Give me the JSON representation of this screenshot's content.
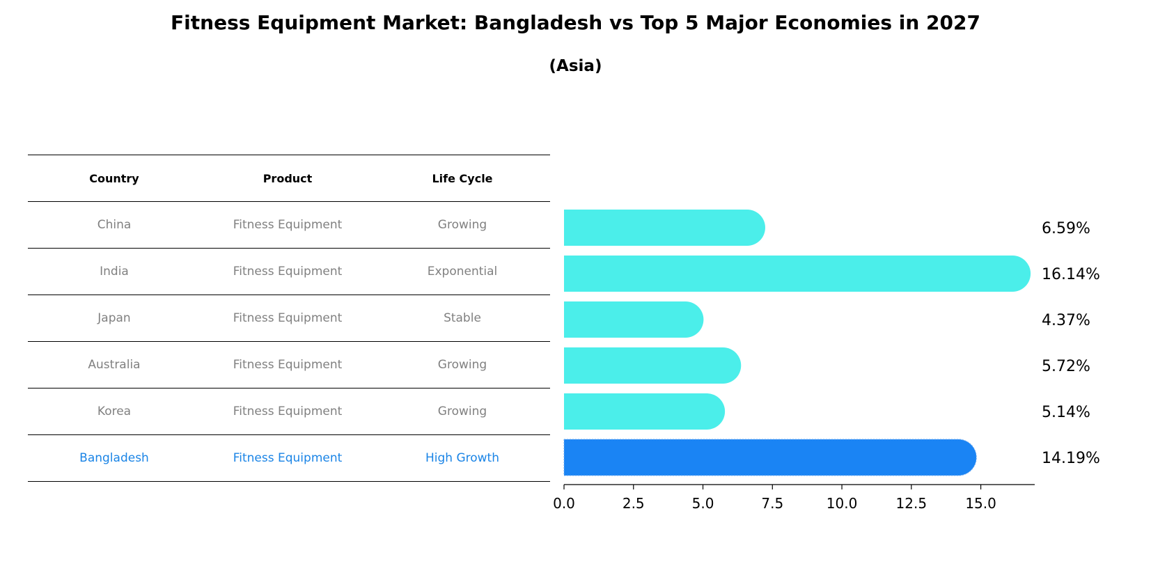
{
  "title": "Fitness Equipment Market: Bangladesh vs Top 5 Major Economies in 2027",
  "subtitle": "(Asia)",
  "table": {
    "headers": [
      "Country",
      "Product",
      "Life Cycle"
    ],
    "rows": [
      [
        "China",
        "Fitness Equipment",
        "Growing"
      ],
      [
        "India",
        "Fitness Equipment",
        "Exponential"
      ],
      [
        "Japan",
        "Fitness Equipment",
        "Stable"
      ],
      [
        "Australia",
        "Fitness Equipment",
        "Growing"
      ],
      [
        "Korea",
        "Fitness Equipment",
        "Growing"
      ],
      [
        "Bangladesh",
        "Fitness Equipment",
        "High Growth"
      ]
    ]
  },
  "chart_data": {
    "type": "bar",
    "orientation": "horizontal",
    "categories": [
      "China",
      "India",
      "Japan",
      "Australia",
      "Korea",
      "Bangladesh"
    ],
    "values": [
      6.59,
      16.14,
      4.37,
      5.72,
      5.14,
      14.19
    ],
    "value_labels": [
      "6.59%",
      "16.14%",
      "4.37%",
      "5.72%",
      "5.14%",
      "14.19%"
    ],
    "xlim": [
      0,
      16.94
    ],
    "xticks": [
      0,
      2.5,
      5,
      7.5,
      10,
      12.5,
      15
    ],
    "xtick_labels": [
      "0.0",
      "2.5",
      "5.0",
      "7.5",
      "10.0",
      "12.5",
      "15.0"
    ],
    "highlight": "Bangladesh",
    "colors": {
      "default": "#4beeea",
      "highlight": "#1a84f4"
    }
  }
}
